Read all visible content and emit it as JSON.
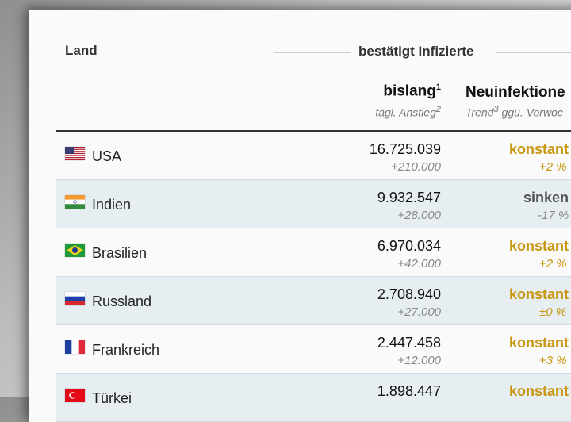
{
  "header": {
    "land": "Land",
    "group": "bestätigt Infizierte",
    "col_total": "bislang",
    "col_total_sup": "1",
    "col_total_sub": "tägl. Anstieg",
    "col_total_sub_sup": "2",
    "col_new": "Neuinfektione",
    "col_new_sub_a": "Trend",
    "col_new_sub_sup": "3",
    "col_new_sub_b": " ggü. Vorwoc"
  },
  "colors": {
    "konstant": "#c8960f",
    "sinken": "#555555"
  },
  "rows": [
    {
      "flag": "us-flag",
      "country": "USA",
      "total": "16.725.039",
      "rise": "+210.000",
      "trend": "konstant",
      "change": "+2 %"
    },
    {
      "flag": "india-flag",
      "country": "Indien",
      "total": "9.932.547",
      "rise": "+28.000",
      "trend": "sinken",
      "change": "-17 %"
    },
    {
      "flag": "brazil-flag",
      "country": "Brasilien",
      "total": "6.970.034",
      "rise": "+42.000",
      "trend": "konstant",
      "change": "+2 %"
    },
    {
      "flag": "russia-flag",
      "country": "Russland",
      "total": "2.708.940",
      "rise": "+27.000",
      "trend": "konstant",
      "change": "±0 %"
    },
    {
      "flag": "france-flag",
      "country": "Frankreich",
      "total": "2.447.458",
      "rise": "+12.000",
      "trend": "konstant",
      "change": "+3 %"
    },
    {
      "flag": "turkey-flag",
      "country": "Türkei",
      "total": "1.898.447",
      "rise": "",
      "trend": "konstant",
      "change": ""
    }
  ]
}
